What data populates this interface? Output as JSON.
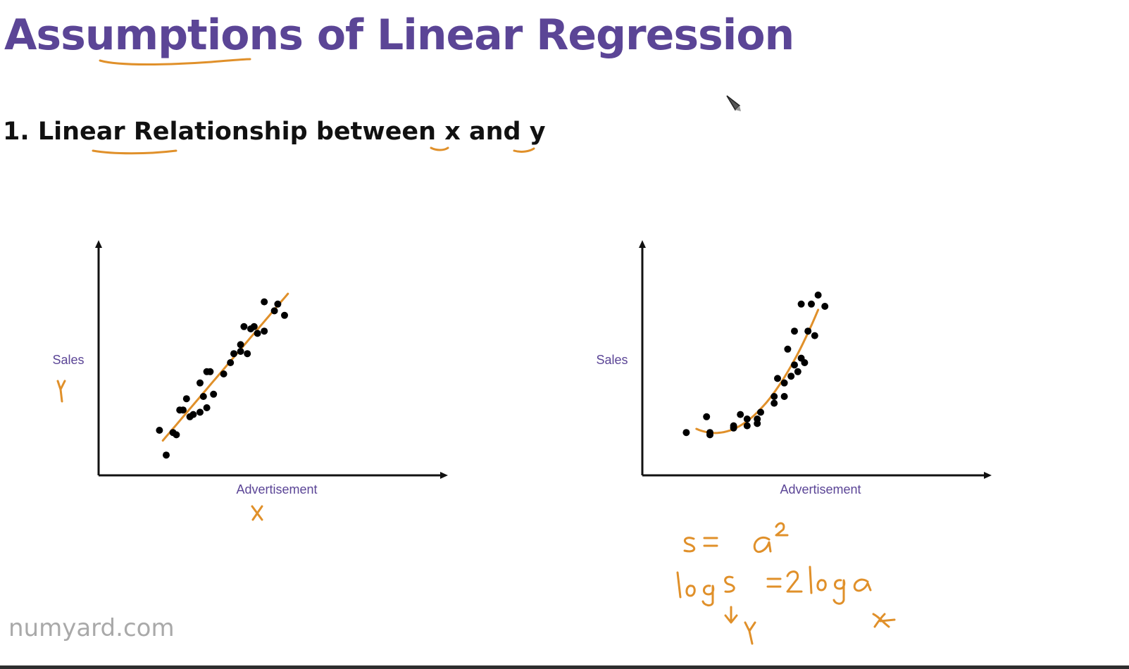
{
  "slide": {
    "title": "Assumptions of Linear Regression",
    "subtitle": "1. Linear Relationship between x and y",
    "watermark": "numyard.com"
  },
  "colors": {
    "title": "#5b4596",
    "axis_label": "#5b4596",
    "fit_line": "#e0902a",
    "points": "#000000",
    "annotation_ink": "#e0902a"
  },
  "icons": {
    "cursor": "pen-cursor-icon"
  },
  "annotations": {
    "y_letter": "y",
    "x_letter": "x",
    "eq1": "s = a²",
    "eq2": "log s = 2log a",
    "eq2_y": "y",
    "eq2_x": "x"
  },
  "chart_data": [
    {
      "type": "scatter",
      "title": "",
      "xlabel": "Advertisement",
      "ylabel": "Sales",
      "xlim": [
        0,
        10
      ],
      "ylim": [
        0,
        10
      ],
      "grid": false,
      "ticks": false,
      "series": [
        {
          "points": [
            [
              1.8,
              2.0
            ],
            [
              2.0,
              0.9
            ],
            [
              2.2,
              1.9
            ],
            [
              2.3,
              1.8
            ],
            [
              2.4,
              2.9
            ],
            [
              2.5,
              2.9
            ],
            [
              2.6,
              3.4
            ],
            [
              2.7,
              2.6
            ],
            [
              2.8,
              2.7
            ],
            [
              3.0,
              2.8
            ],
            [
              3.0,
              4.1
            ],
            [
              3.1,
              3.5
            ],
            [
              3.2,
              3.0
            ],
            [
              3.2,
              4.6
            ],
            [
              3.3,
              4.6
            ],
            [
              3.4,
              3.6
            ],
            [
              3.7,
              4.5
            ],
            [
              3.9,
              5.0
            ],
            [
              4.0,
              5.4
            ],
            [
              4.2,
              5.5
            ],
            [
              4.2,
              5.8
            ],
            [
              4.4,
              5.4
            ],
            [
              4.3,
              6.6
            ],
            [
              4.5,
              6.5
            ],
            [
              4.6,
              6.6
            ],
            [
              4.7,
              6.3
            ],
            [
              4.9,
              6.4
            ],
            [
              4.9,
              7.7
            ],
            [
              5.2,
              7.3
            ],
            [
              5.3,
              7.6
            ],
            [
              5.5,
              7.1
            ]
          ]
        }
      ],
      "fit_line": {
        "shape": "linear",
        "x_range": [
          1.9,
          5.6
        ]
      }
    },
    {
      "type": "scatter",
      "title": "",
      "xlabel": "Advertisement",
      "ylabel": "Sales",
      "xlim": [
        0,
        10
      ],
      "ylim": [
        0,
        10
      ],
      "grid": false,
      "ticks": false,
      "series": [
        {
          "points": [
            [
              1.3,
              1.9
            ],
            [
              1.9,
              2.6
            ],
            [
              2.0,
              1.9
            ],
            [
              2.0,
              1.8
            ],
            [
              2.7,
              2.2
            ],
            [
              2.7,
              2.1
            ],
            [
              2.9,
              2.7
            ],
            [
              3.1,
              2.5
            ],
            [
              3.1,
              2.2
            ],
            [
              3.4,
              2.5
            ],
            [
              3.4,
              2.3
            ],
            [
              3.5,
              2.8
            ],
            [
              3.9,
              3.5
            ],
            [
              3.9,
              3.2
            ],
            [
              4.0,
              4.3
            ],
            [
              4.2,
              3.5
            ],
            [
              4.2,
              4.1
            ],
            [
              4.3,
              5.6
            ],
            [
              4.4,
              4.4
            ],
            [
              4.5,
              6.4
            ],
            [
              4.5,
              4.9
            ],
            [
              4.6,
              4.6
            ],
            [
              4.7,
              5.2
            ],
            [
              4.8,
              5.0
            ],
            [
              4.7,
              7.6
            ],
            [
              4.9,
              6.4
            ],
            [
              5.0,
              7.6
            ],
            [
              5.1,
              6.2
            ],
            [
              5.2,
              8.0
            ],
            [
              5.4,
              7.5
            ]
          ]
        }
      ],
      "fit_line": {
        "shape": "quadratic",
        "x_range": [
          1.6,
          5.2
        ]
      }
    }
  ]
}
